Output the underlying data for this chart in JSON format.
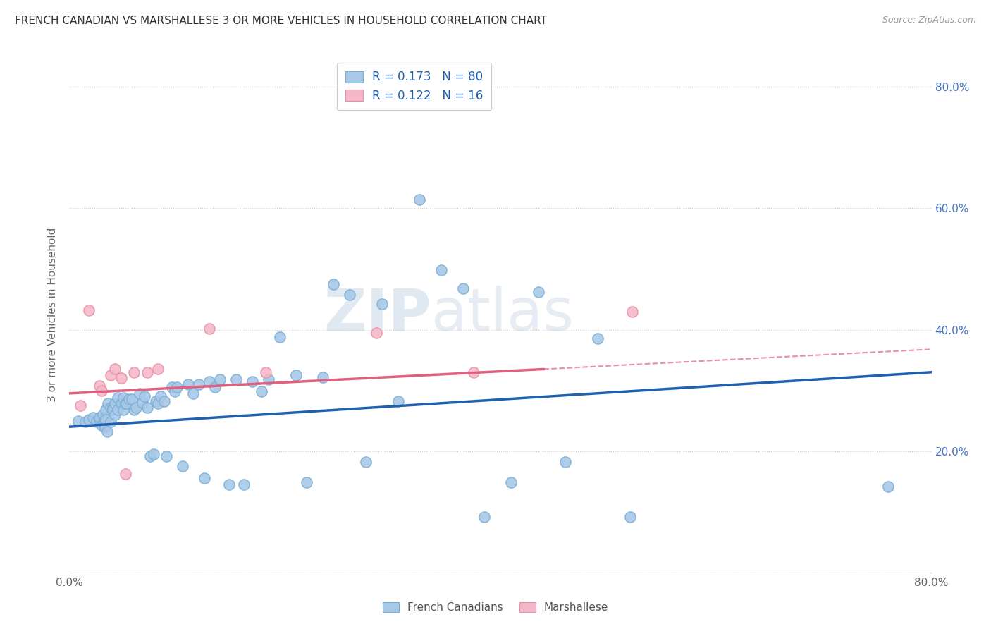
{
  "title": "FRENCH CANADIAN VS MARSHALLESE 3 OR MORE VEHICLES IN HOUSEHOLD CORRELATION CHART",
  "source": "Source: ZipAtlas.com",
  "ylabel": "3 or more Vehicles in Household",
  "x_min": 0.0,
  "x_max": 0.8,
  "y_min": 0.0,
  "y_max": 0.85,
  "x_ticks": [
    0.0,
    0.1,
    0.2,
    0.3,
    0.4,
    0.5,
    0.6,
    0.7,
    0.8
  ],
  "x_tick_labels": [
    "0.0%",
    "",
    "",
    "",
    "",
    "",
    "",
    "",
    "80.0%"
  ],
  "y_ticks": [
    0.0,
    0.2,
    0.4,
    0.6,
    0.8
  ],
  "y_tick_labels_right": [
    "",
    "20.0%",
    "40.0%",
    "60.0%",
    "80.0%"
  ],
  "legend_r1": "0.173",
  "legend_n1": "80",
  "legend_r2": "0.122",
  "legend_n2": "16",
  "blue_fill": "#a8c8e8",
  "blue_edge": "#7aafd4",
  "pink_fill": "#f4b8c8",
  "pink_edge": "#e890a8",
  "blue_line_color": "#2060b0",
  "pink_line_color": "#e06080",
  "background_color": "#ffffff",
  "watermark_zip": "ZIP",
  "watermark_atlas": "atlas",
  "fc_x": [
    0.008,
    0.015,
    0.018,
    0.022,
    0.025,
    0.028,
    0.028,
    0.03,
    0.031,
    0.032,
    0.033,
    0.033,
    0.034,
    0.034,
    0.035,
    0.036,
    0.038,
    0.038,
    0.04,
    0.04,
    0.042,
    0.042,
    0.045,
    0.045,
    0.048,
    0.05,
    0.05,
    0.052,
    0.053,
    0.055,
    0.058,
    0.06,
    0.062,
    0.065,
    0.068,
    0.07,
    0.072,
    0.075,
    0.078,
    0.08,
    0.082,
    0.085,
    0.088,
    0.09,
    0.095,
    0.098,
    0.1,
    0.105,
    0.11,
    0.115,
    0.12,
    0.125,
    0.13,
    0.135,
    0.14,
    0.148,
    0.155,
    0.162,
    0.17,
    0.178,
    0.185,
    0.195,
    0.21,
    0.22,
    0.235,
    0.245,
    0.26,
    0.275,
    0.29,
    0.305,
    0.325,
    0.345,
    0.365,
    0.385,
    0.41,
    0.435,
    0.46,
    0.49,
    0.52,
    0.76
  ],
  "fc_y": [
    0.25,
    0.248,
    0.252,
    0.255,
    0.248,
    0.252,
    0.255,
    0.242,
    0.26,
    0.248,
    0.248,
    0.24,
    0.268,
    0.252,
    0.232,
    0.278,
    0.272,
    0.248,
    0.272,
    0.268,
    0.278,
    0.26,
    0.288,
    0.268,
    0.278,
    0.288,
    0.268,
    0.278,
    0.278,
    0.285,
    0.285,
    0.268,
    0.272,
    0.295,
    0.28,
    0.29,
    0.272,
    0.192,
    0.195,
    0.282,
    0.278,
    0.29,
    0.282,
    0.192,
    0.305,
    0.298,
    0.305,
    0.175,
    0.31,
    0.295,
    0.31,
    0.155,
    0.315,
    0.305,
    0.318,
    0.145,
    0.318,
    0.145,
    0.315,
    0.298,
    0.318,
    0.388,
    0.325,
    0.148,
    0.322,
    0.475,
    0.458,
    0.182,
    0.442,
    0.282,
    0.615,
    0.498,
    0.468,
    0.092,
    0.148,
    0.462,
    0.182,
    0.385,
    0.092,
    0.142
  ],
  "ma_x": [
    0.01,
    0.018,
    0.028,
    0.03,
    0.038,
    0.042,
    0.048,
    0.052,
    0.06,
    0.072,
    0.082,
    0.13,
    0.182,
    0.285,
    0.375,
    0.522
  ],
  "ma_y": [
    0.275,
    0.432,
    0.308,
    0.3,
    0.325,
    0.335,
    0.32,
    0.162,
    0.33,
    0.33,
    0.335,
    0.402,
    0.33,
    0.395,
    0.33,
    0.43
  ],
  "fc_trend_x": [
    0.0,
    0.8
  ],
  "fc_trend_y": [
    0.24,
    0.33
  ],
  "ma_trend_x": [
    0.0,
    0.44
  ],
  "ma_trend_y": [
    0.295,
    0.335
  ]
}
